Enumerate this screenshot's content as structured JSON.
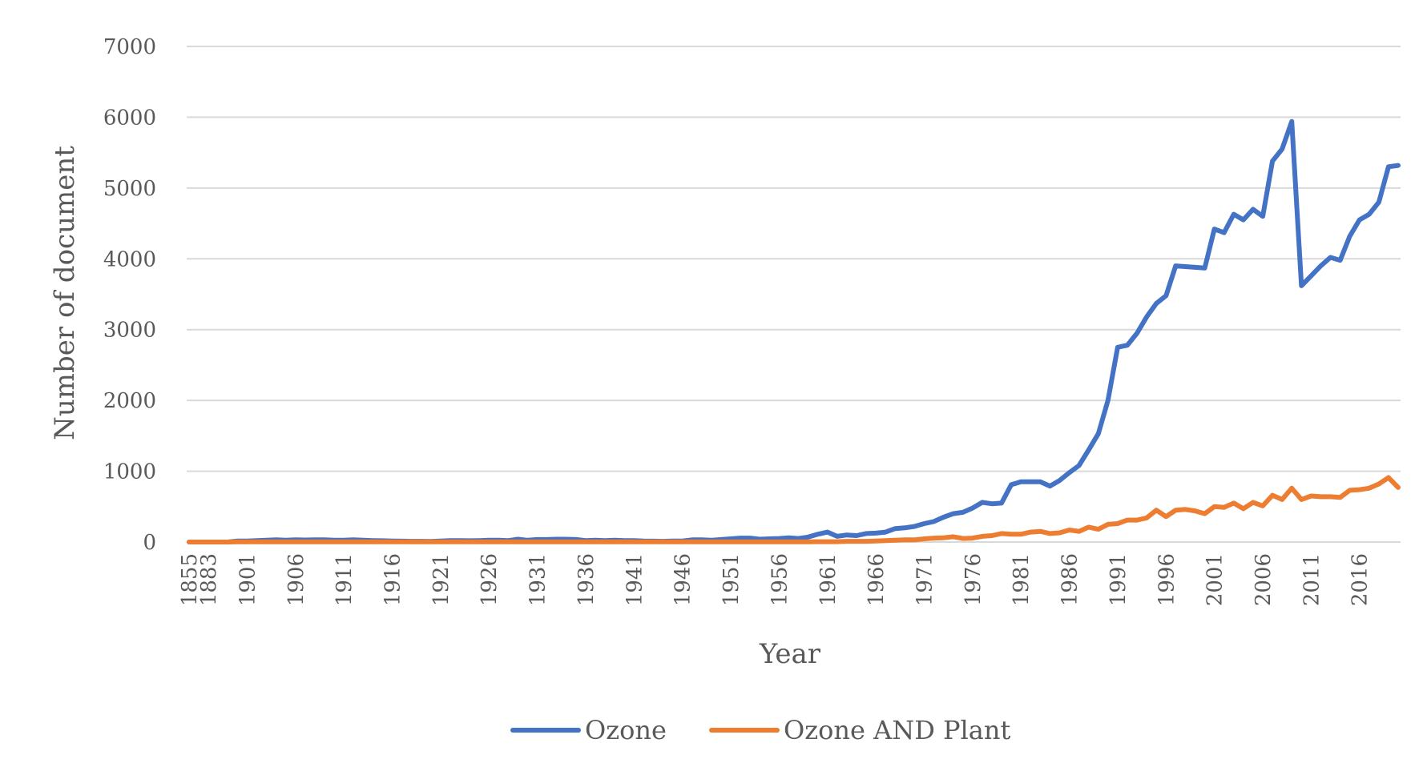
{
  "chart_data": {
    "type": "line",
    "xlabel": "Year",
    "ylabel": "Number of document",
    "ylim": [
      0,
      7000
    ],
    "yticks": [
      0,
      1000,
      2000,
      3000,
      4000,
      5000,
      6000,
      7000
    ],
    "x_tick_labels": [
      "1855",
      "1883",
      "1901",
      "1906",
      "1911",
      "1916",
      "1921",
      "1926",
      "1931",
      "1936",
      "1941",
      "1946",
      "1951",
      "1956",
      "1961",
      "1966",
      "1971",
      "1976",
      "1981",
      "1986",
      "1991",
      "1996",
      "2001",
      "2006",
      "2011",
      "2016"
    ],
    "x": [
      "1855",
      "1880",
      "1883",
      "1890",
      "1899",
      "1900",
      "1901",
      "1902",
      "1903",
      "1904",
      "1905",
      "1906",
      "1907",
      "1908",
      "1909",
      "1910",
      "1911",
      "1912",
      "1913",
      "1914",
      "1915",
      "1916",
      "1917",
      "1918",
      "1919",
      "1920",
      "1921",
      "1922",
      "1923",
      "1924",
      "1925",
      "1926",
      "1927",
      "1928",
      "1929",
      "1930",
      "1931",
      "1932",
      "1933",
      "1934",
      "1935",
      "1936",
      "1937",
      "1938",
      "1939",
      "1940",
      "1941",
      "1942",
      "1943",
      "1944",
      "1945",
      "1946",
      "1947",
      "1948",
      "1949",
      "1950",
      "1951",
      "1952",
      "1953",
      "1954",
      "1955",
      "1956",
      "1957",
      "1958",
      "1959",
      "1960",
      "1961",
      "1962",
      "1963",
      "1964",
      "1965",
      "1966",
      "1967",
      "1968",
      "1969",
      "1970",
      "1971",
      "1972",
      "1973",
      "1974",
      "1975",
      "1976",
      "1977",
      "1978",
      "1979",
      "1980",
      "1981",
      "1982",
      "1983",
      "1984",
      "1985",
      "1986",
      "1987",
      "1988",
      "1989",
      "1990",
      "1991",
      "1992",
      "1993",
      "1994",
      "1995",
      "1996",
      "1997",
      "1998",
      "1999",
      "2000",
      "2001",
      "2002",
      "2003",
      "2004",
      "2005",
      "2006",
      "2007",
      "2008",
      "2009",
      "2010",
      "2011",
      "2012",
      "2013",
      "2014",
      "2015",
      "2016",
      "2017",
      "2018",
      "2019",
      "2020"
    ],
    "series": [
      {
        "name": "Ozone",
        "color": "#4472C4",
        "values": [
          0,
          0,
          0,
          0,
          0,
          15,
          15,
          20,
          25,
          30,
          25,
          30,
          28,
          30,
          30,
          25,
          25,
          30,
          25,
          20,
          18,
          15,
          12,
          10,
          10,
          8,
          15,
          20,
          20,
          18,
          20,
          25,
          25,
          20,
          40,
          25,
          35,
          35,
          40,
          40,
          35,
          20,
          25,
          20,
          25,
          20,
          20,
          15,
          12,
          10,
          15,
          15,
          30,
          30,
          25,
          35,
          45,
          55,
          55,
          40,
          45,
          50,
          60,
          50,
          70,
          110,
          140,
          80,
          100,
          90,
          120,
          125,
          140,
          190,
          200,
          220,
          260,
          290,
          350,
          400,
          420,
          480,
          560,
          540,
          550,
          810,
          850,
          850,
          850,
          790,
          870,
          980,
          1080,
          1300,
          1530,
          2000,
          2750,
          2780,
          2950,
          3180,
          3370,
          3480,
          3900,
          3890,
          3880,
          3870,
          4420,
          4370,
          4630,
          4550,
          4700,
          4600,
          5380,
          5550,
          5940,
          3620,
          3760,
          3900,
          4020,
          3980,
          4320,
          4550,
          4630,
          4800,
          5300,
          5320
        ]
      },
      {
        "name": "Ozone AND Plant",
        "color": "#ED7D31",
        "values": [
          0,
          0,
          0,
          0,
          0,
          2,
          2,
          2,
          2,
          2,
          2,
          2,
          2,
          2,
          2,
          2,
          2,
          2,
          2,
          2,
          2,
          2,
          2,
          2,
          2,
          2,
          2,
          2,
          2,
          2,
          2,
          2,
          2,
          2,
          2,
          2,
          2,
          2,
          2,
          2,
          2,
          2,
          2,
          2,
          2,
          2,
          2,
          2,
          2,
          2,
          2,
          2,
          2,
          2,
          2,
          2,
          2,
          2,
          2,
          2,
          2,
          2,
          3,
          3,
          3,
          5,
          5,
          5,
          10,
          10,
          10,
          15,
          20,
          25,
          30,
          30,
          45,
          55,
          60,
          75,
          50,
          55,
          80,
          90,
          120,
          110,
          110,
          140,
          150,
          120,
          130,
          170,
          150,
          210,
          180,
          250,
          260,
          310,
          310,
          340,
          450,
          360,
          450,
          460,
          440,
          400,
          500,
          490,
          550,
          470,
          560,
          510,
          660,
          600,
          760,
          600,
          650,
          640,
          640,
          630,
          730,
          740,
          760,
          820,
          910,
          770
        ]
      }
    ]
  }
}
